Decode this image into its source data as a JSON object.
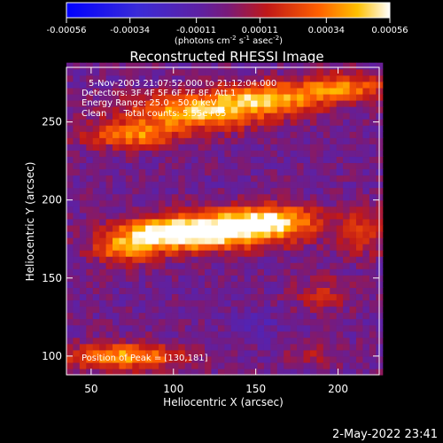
{
  "chart_data": {
    "type": "heatmap",
    "title": "Reconstructed RHESSI Image",
    "xlabel": "Heliocentric X (arcsec)",
    "ylabel": "Heliocentric Y (arcsec)",
    "xlim": [
      35,
      225
    ],
    "ylim": [
      88,
      285
    ],
    "x_ticks": [
      50,
      100,
      150,
      200
    ],
    "y_ticks": [
      100,
      150,
      200,
      250
    ],
    "colorbar": {
      "range": [
        -0.00056,
        0.00056
      ],
      "tick_values": [
        -0.00056,
        -0.00034,
        -0.00011,
        0.00011,
        0.00034,
        0.00056
      ],
      "tick_labels": [
        "-0.00056",
        "-0.00034",
        "-0.00011",
        "0.00011",
        "0.00034",
        "0.00056"
      ],
      "label_base": "(photons cm",
      "label_exp1": "-2",
      "label_mid": " s",
      "label_exp2": "-1",
      "label_mid2": " asec",
      "label_exp3": "-2",
      "label_end": ")"
    },
    "annotations": {
      "time_range": "5-Nov-2003 21:07:52.000 to 21:12:04.000",
      "detectors": "Detectors: 3F 4F 5F 6F 7F 8F, Att 1",
      "energy": "Energy Range: 25.0 - 50.0 keV",
      "clean": "Clean      Total counts: 5.55e+05",
      "peak": "Position of Peak = [130,181]"
    },
    "peak": [
      130,
      181
    ],
    "intensity_sources": [
      {
        "x": 130,
        "y": 181,
        "sx": 30,
        "sy": 8,
        "amp": 0.00056
      },
      {
        "x": 95,
        "y": 178,
        "sx": 22,
        "sy": 7,
        "amp": 0.00045
      },
      {
        "x": 160,
        "y": 188,
        "sx": 20,
        "sy": 7,
        "amp": 0.0004
      },
      {
        "x": 70,
        "y": 168,
        "sx": 14,
        "sy": 7,
        "amp": 0.00032
      },
      {
        "x": 115,
        "y": 257,
        "sx": 30,
        "sy": 8,
        "amp": 0.00048
      },
      {
        "x": 75,
        "y": 242,
        "sx": 20,
        "sy": 6,
        "amp": 0.00038
      },
      {
        "x": 160,
        "y": 266,
        "sx": 25,
        "sy": 7,
        "amp": 0.00042
      },
      {
        "x": 205,
        "y": 273,
        "sx": 18,
        "sy": 6,
        "amp": 0.00036
      },
      {
        "x": 70,
        "y": 100,
        "sx": 25,
        "sy": 6,
        "amp": 0.00044
      },
      {
        "x": 215,
        "y": 180,
        "sx": 10,
        "sy": 10,
        "amp": 0.00025
      },
      {
        "x": 190,
        "y": 140,
        "sx": 12,
        "sy": 8,
        "amp": 0.00018
      },
      {
        "x": 185,
        "y": 102,
        "sx": 10,
        "sy": 6,
        "amp": 0.00015
      },
      {
        "x": 150,
        "y": 120,
        "sx": 10,
        "sy": 6,
        "amp": -0.00012
      }
    ],
    "background_level": -4e-05
  },
  "footer": {
    "date": "2-May-2022 23:41"
  }
}
